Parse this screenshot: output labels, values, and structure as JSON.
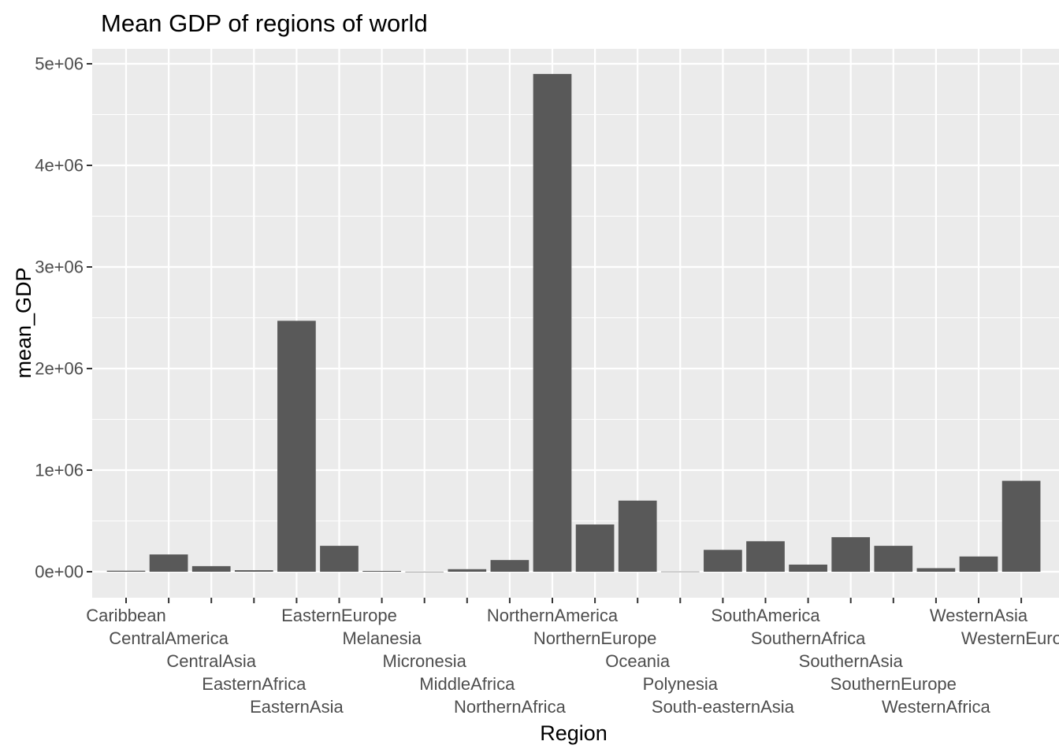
{
  "chart_data": {
    "type": "bar",
    "title": "Mean GDP of regions of world",
    "xlabel": "Region",
    "ylabel": "mean_GDP",
    "categories": [
      "Caribbean",
      "CentralAmerica",
      "CentralAsia",
      "EasternAfrica",
      "EasternAsia",
      "EasternEurope",
      "Melanesia",
      "Micronesia",
      "MiddleAfrica",
      "NorthernAfrica",
      "NorthernAmerica",
      "NorthernEurope",
      "Oceania",
      "Polynesia",
      "South-easternAsia",
      "SouthAmerica",
      "SouthernAfrica",
      "SouthernAsia",
      "SouthernEurope",
      "WesternAfrica",
      "WesternAsia",
      "WesternEurope"
    ],
    "values": [
      10000,
      170000,
      55000,
      15000,
      2470000,
      255000,
      8000,
      1000,
      25000,
      115000,
      4900000,
      465000,
      700000,
      2000,
      215000,
      300000,
      70000,
      340000,
      255000,
      35000,
      150000,
      895000
    ],
    "ylim": [
      -260000,
      5200000
    ],
    "yticks": [
      0,
      1000000,
      2000000,
      3000000,
      4000000,
      5000000
    ],
    "ytick_labels": [
      "0e+00",
      "1e+06",
      "2e+06",
      "3e+06",
      "4e+06",
      "5e+06"
    ],
    "bar_color": "#595959",
    "panel_color": "#ebebeb",
    "grid": true,
    "legend": "none"
  }
}
